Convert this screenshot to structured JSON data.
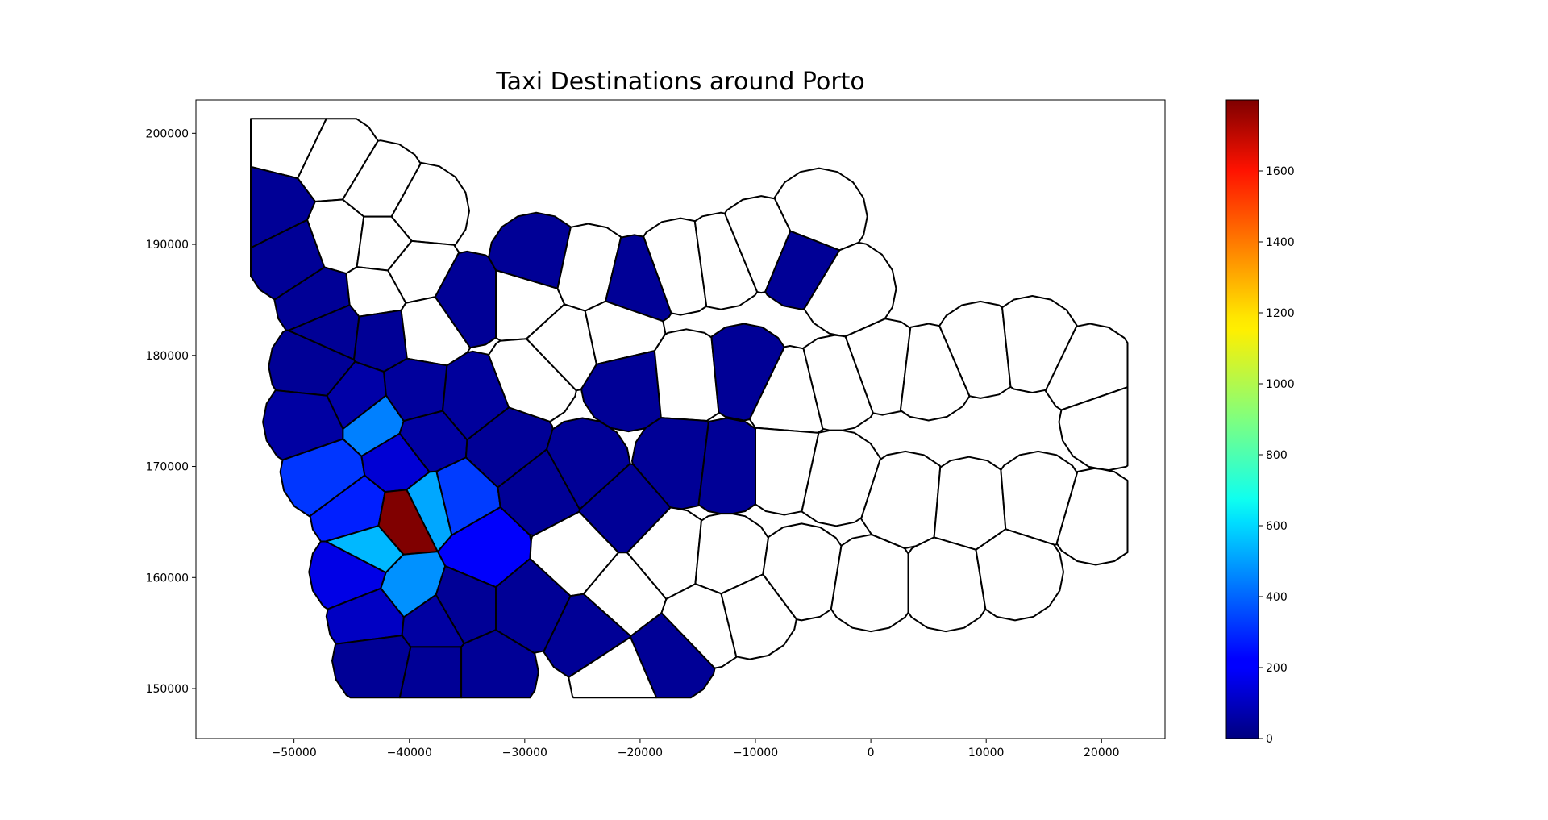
{
  "chart_data": {
    "type": "heatmap",
    "subtype": "choropleth",
    "title": "Taxi Destinations around Porto",
    "xlabel": "",
    "ylabel": "",
    "xlim": [
      -58500,
      25500
    ],
    "ylim": [
      145500,
      203000
    ],
    "xticks": [
      -50000,
      -40000,
      -30000,
      -20000,
      -10000,
      0,
      10000,
      20000
    ],
    "xtick_labels": [
      "−50000",
      "−40000",
      "−30000",
      "−20000",
      "−10000",
      "0",
      "10000",
      "20000"
    ],
    "yticks": [
      150000,
      160000,
      170000,
      180000,
      190000,
      200000
    ],
    "ytick_labels": [
      "150000",
      "160000",
      "170000",
      "180000",
      "190000",
      "200000"
    ],
    "grid": false,
    "colormap": "jet",
    "colorbar": {
      "placement": "right",
      "vmin": 0,
      "vmax": 1800,
      "ticks": [
        0,
        200,
        400,
        600,
        800,
        1000,
        1200,
        1400,
        1600
      ],
      "tick_labels": [
        "0",
        "200",
        "400",
        "600",
        "800",
        "1000",
        "1200",
        "1400",
        "1600"
      ]
    },
    "no_data_color": "#ffffff",
    "edge_color": "#000000",
    "regions": [
      {
        "x": -50500,
        "y": 199500,
        "value": null
      },
      {
        "x": -46500,
        "y": 197500,
        "value": null
      },
      {
        "x": -42500,
        "y": 195000,
        "value": null
      },
      {
        "x": -39000,
        "y": 193000,
        "value": null
      },
      {
        "x": -52000,
        "y": 193200,
        "value": 40
      },
      {
        "x": -50000,
        "y": 189000,
        "value": 40
      },
      {
        "x": -46000,
        "y": 190500,
        "value": null
      },
      {
        "x": -42500,
        "y": 190000,
        "value": null
      },
      {
        "x": -39500,
        "y": 187500,
        "value": null
      },
      {
        "x": -47500,
        "y": 185000,
        "value": 40
      },
      {
        "x": -43000,
        "y": 185500,
        "value": null
      },
      {
        "x": -46500,
        "y": 182500,
        "value": 40
      },
      {
        "x": -42500,
        "y": 182000,
        "value": 40
      },
      {
        "x": -38500,
        "y": 182500,
        "value": null
      },
      {
        "x": -35000,
        "y": 185000,
        "value": 40
      },
      {
        "x": -30000,
        "y": 185000,
        "value": null
      },
      {
        "x": -29000,
        "y": 188500,
        "value": 40
      },
      {
        "x": -24500,
        "y": 187500,
        "value": null
      },
      {
        "x": -20500,
        "y": 186500,
        "value": 40
      },
      {
        "x": -16500,
        "y": 188000,
        "value": null
      },
      {
        "x": -13000,
        "y": 188500,
        "value": null
      },
      {
        "x": -9500,
        "y": 190000,
        "value": null
      },
      {
        "x": -6000,
        "y": 188500,
        "value": 40
      },
      {
        "x": -4500,
        "y": 192500,
        "value": null
      },
      {
        "x": -2000,
        "y": 186000,
        "value": null
      },
      {
        "x": -48000,
        "y": 179000,
        "value": 40
      },
      {
        "x": -48500,
        "y": 174000,
        "value": 60
      },
      {
        "x": -44500,
        "y": 176000,
        "value": 70
      },
      {
        "x": -43000,
        "y": 174000,
        "value": 450
      },
      {
        "x": -39500,
        "y": 176500,
        "value": 50
      },
      {
        "x": -38500,
        "y": 172500,
        "value": 60
      },
      {
        "x": -34500,
        "y": 176000,
        "value": 50
      },
      {
        "x": -31500,
        "y": 172000,
        "value": 40
      },
      {
        "x": -29500,
        "y": 178000,
        "value": null
      },
      {
        "x": -26500,
        "y": 181000,
        "value": null
      },
      {
        "x": -22000,
        "y": 182000,
        "value": null
      },
      {
        "x": -21000,
        "y": 177500,
        "value": 40
      },
      {
        "x": -16000,
        "y": 178000,
        "value": null
      },
      {
        "x": -11000,
        "y": 178500,
        "value": 40
      },
      {
        "x": -7000,
        "y": 176500,
        "value": null
      },
      {
        "x": -3000,
        "y": 177500,
        "value": null
      },
      {
        "x": 1000,
        "y": 179000,
        "value": null
      },
      {
        "x": 5000,
        "y": 178500,
        "value": null
      },
      {
        "x": 9500,
        "y": 180500,
        "value": null
      },
      {
        "x": 14000,
        "y": 181000,
        "value": null
      },
      {
        "x": 19000,
        "y": 178500,
        "value": null
      },
      {
        "x": 20500,
        "y": 174000,
        "value": null
      },
      {
        "x": -47000,
        "y": 169500,
        "value": 320
      },
      {
        "x": -44500,
        "y": 166000,
        "value": 280
      },
      {
        "x": -41000,
        "y": 170500,
        "value": 150
      },
      {
        "x": -38000,
        "y": 166500,
        "value": 520
      },
      {
        "x": -40500,
        "y": 165200,
        "value": 1800
      },
      {
        "x": -36000,
        "y": 167000,
        "value": 330
      },
      {
        "x": -33500,
        "y": 162500,
        "value": 220
      },
      {
        "x": -28500,
        "y": 168000,
        "value": 40
      },
      {
        "x": -25000,
        "y": 170000,
        "value": 40
      },
      {
        "x": -16500,
        "y": 170500,
        "value": 40
      },
      {
        "x": -12500,
        "y": 170000,
        "value": 40
      },
      {
        "x": -21500,
        "y": 166000,
        "value": 40
      },
      {
        "x": -7500,
        "y": 170000,
        "value": null
      },
      {
        "x": -3000,
        "y": 169000,
        "value": null
      },
      {
        "x": 3000,
        "y": 167000,
        "value": null
      },
      {
        "x": 8500,
        "y": 166500,
        "value": null
      },
      {
        "x": 14500,
        "y": 167000,
        "value": null
      },
      {
        "x": 19500,
        "y": 165500,
        "value": null
      },
      {
        "x": -43500,
        "y": 162500,
        "value": 550
      },
      {
        "x": -44500,
        "y": 160500,
        "value": 180
      },
      {
        "x": -40000,
        "y": 159000,
        "value": 480
      },
      {
        "x": -43000,
        "y": 156500,
        "value": 120
      },
      {
        "x": -38000,
        "y": 156000,
        "value": 60
      },
      {
        "x": -35500,
        "y": 157500,
        "value": 40
      },
      {
        "x": -29500,
        "y": 157500,
        "value": 40
      },
      {
        "x": -25500,
        "y": 162000,
        "value": null
      },
      {
        "x": -21500,
        "y": 158500,
        "value": null
      },
      {
        "x": -17500,
        "y": 162000,
        "value": null
      },
      {
        "x": -12500,
        "y": 161500,
        "value": null
      },
      {
        "x": -6000,
        "y": 160500,
        "value": null
      },
      {
        "x": 0,
        "y": 159500,
        "value": null
      },
      {
        "x": 6500,
        "y": 159500,
        "value": null
      },
      {
        "x": 12500,
        "y": 160500,
        "value": null
      },
      {
        "x": -42500,
        "y": 152500,
        "value": 40
      },
      {
        "x": -38000,
        "y": 151500,
        "value": 40
      },
      {
        "x": -33000,
        "y": 151500,
        "value": 40
      },
      {
        "x": -24500,
        "y": 155000,
        "value": 40
      },
      {
        "x": -17500,
        "y": 153000,
        "value": 40
      },
      {
        "x": -22000,
        "y": 151000,
        "value": null
      },
      {
        "x": -14500,
        "y": 156000,
        "value": null
      },
      {
        "x": -10500,
        "y": 157000,
        "value": null
      }
    ]
  }
}
